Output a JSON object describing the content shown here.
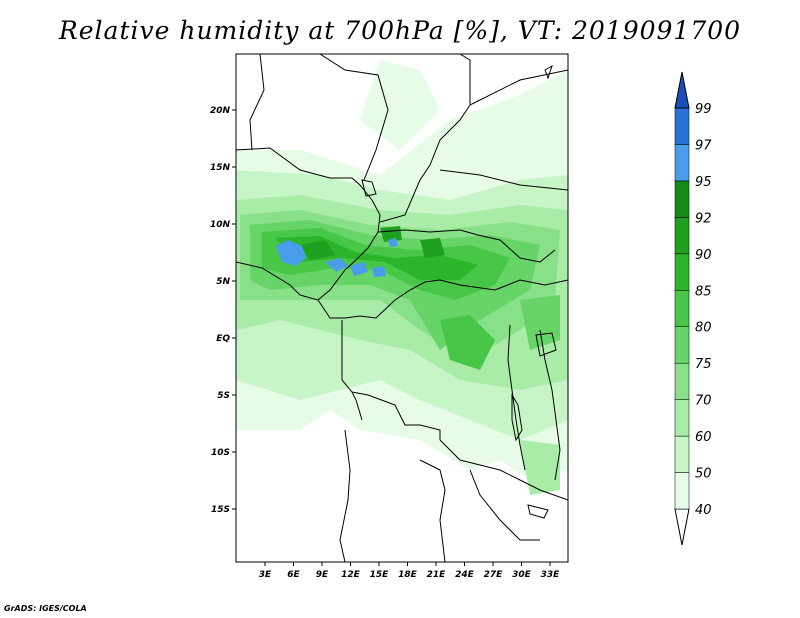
{
  "title": "Relative humidity at 700hPa [%], VT: 2019091700",
  "credit": "GrADS: IGES/COLA",
  "map": {
    "lat_labels": [
      "20N",
      "15N",
      "10N",
      "5N",
      "EQ",
      "5S",
      "10S",
      "15S"
    ],
    "lon_labels": [
      "3E",
      "6E",
      "9E",
      "12E",
      "15E",
      "18E",
      "21E",
      "24E",
      "27E",
      "30E",
      "33E"
    ]
  },
  "colorbar": {
    "levels": [
      "40",
      "50",
      "60",
      "70",
      "75",
      "80",
      "85",
      "90",
      "92",
      "95",
      "97",
      "99"
    ],
    "colors": [
      "#ffffff",
      "#e6fce6",
      "#c8f5c8",
      "#a8eca8",
      "#88e088",
      "#66d466",
      "#48c648",
      "#2ab52a",
      "#1e9f1e",
      "#138a13",
      "#4a9ded",
      "#2a72d9",
      "#1a4fb8"
    ]
  }
}
